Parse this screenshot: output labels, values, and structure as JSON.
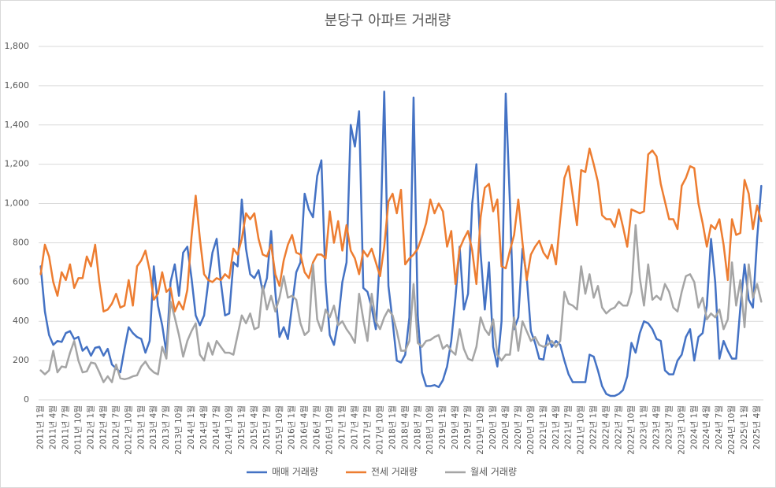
{
  "chart_data": {
    "type": "line",
    "title": "분당구 아파트 거래량",
    "categories": [
      "2011년 1월",
      null,
      null,
      "2011년 4월",
      null,
      null,
      "2011년 7월",
      null,
      null,
      "2011년 10월",
      null,
      null,
      "2012년 1월",
      null,
      null,
      "2012년 4월",
      null,
      null,
      "2012년 7월",
      null,
      null,
      "2012년 10월",
      null,
      null,
      "2013년 1월",
      null,
      null,
      "2013년 4월",
      null,
      null,
      "2013년 7월",
      null,
      null,
      "2013년 10월",
      null,
      null,
      "2014년 1월",
      null,
      null,
      "2014년 4월",
      null,
      null,
      "2014년 7월",
      null,
      null,
      "2014년 10월",
      null,
      null,
      "2015년 1월",
      null,
      null,
      "2015년 4월",
      null,
      null,
      "2015년 7월",
      null,
      null,
      "2015년 10월",
      null,
      null,
      "2016년 1월",
      null,
      null,
      "2016년 4월",
      null,
      null,
      "2016년 7월",
      null,
      null,
      "2016년 10월",
      null,
      null,
      "2017년 1월",
      null,
      null,
      "2017년 4월",
      null,
      null,
      "2017년 7월",
      null,
      null,
      "2017년 10월",
      null,
      null,
      "2018년 1월",
      null,
      null,
      "2018년 4월",
      null,
      null,
      "2018년 7월",
      null,
      null,
      "2018년 10월",
      null,
      null,
      "2019년 1월",
      null,
      null,
      "2019년 4월",
      null,
      null,
      "2019년 7월",
      null,
      null,
      "2019년 10월",
      null,
      null,
      "2020년 1월",
      null,
      null,
      "2020년 4월",
      null,
      null,
      "2020년 7월",
      null,
      null,
      "2020년 10월",
      null,
      null,
      "2021년 1월",
      null,
      null,
      "2021년 4월",
      null,
      null,
      "2021년 7월",
      null,
      null,
      "2021년 10월",
      null,
      null,
      "2022년 1월",
      null,
      null,
      "2022년 4월",
      null,
      null,
      "2022년 7월",
      null,
      null,
      "2022년 10월",
      null,
      null,
      "2023년 1월",
      null,
      null,
      "2023년 4월",
      null,
      null,
      "2023년 7월",
      null,
      null,
      "2023년 10월",
      null,
      null,
      "2024년 1월",
      null,
      null,
      "2024년 4월",
      null,
      null,
      "2024년 7월",
      null,
      null,
      "2024년 10월",
      null,
      null,
      "2025년 1월",
      null,
      null,
      "2025년 4월",
      null
    ],
    "series": [
      {
        "name": "매매 거래량",
        "color": "#4472c4",
        "values": [
          680,
          450,
          330,
          280,
          300,
          295,
          340,
          350,
          310,
          320,
          250,
          270,
          225,
          265,
          270,
          225,
          260,
          180,
          160,
          140,
          260,
          370,
          340,
          320,
          310,
          240,
          300,
          680,
          480,
          380,
          240,
          600,
          690,
          530,
          750,
          780,
          620,
          430,
          380,
          430,
          600,
          750,
          820,
          600,
          430,
          440,
          700,
          680,
          1020,
          770,
          640,
          620,
          660,
          550,
          620,
          860,
          550,
          320,
          370,
          310,
          480,
          650,
          700,
          1050,
          970,
          930,
          1140,
          1220,
          600,
          330,
          280,
          400,
          600,
          700,
          1400,
          1290,
          1470,
          570,
          550,
          470,
          360,
          750,
          1570,
          580,
          400,
          200,
          190,
          230,
          420,
          1540,
          430,
          140,
          70,
          70,
          75,
          65,
          100,
          170,
          300,
          520,
          780,
          460,
          540,
          1000,
          1200,
          750,
          460,
          700,
          270,
          170,
          400,
          1560,
          1000,
          360,
          420,
          770,
          630,
          350,
          290,
          210,
          205,
          330,
          270,
          300,
          280,
          200,
          130,
          90,
          90,
          90,
          90,
          230,
          220,
          150,
          70,
          30,
          20,
          20,
          30,
          50,
          120,
          290,
          240,
          340,
          400,
          390,
          360,
          310,
          300,
          150,
          130,
          130,
          200,
          230,
          320,
          360,
          200,
          320,
          340,
          480,
          820,
          600,
          210,
          300,
          250,
          210,
          210,
          470,
          690,
          510,
          470,
          820,
          1090
        ]
      },
      {
        "name": "전세 거래량",
        "color": "#ed7d31",
        "values": [
          640,
          790,
          730,
          600,
          530,
          650,
          610,
          690,
          570,
          620,
          620,
          730,
          680,
          790,
          600,
          450,
          460,
          490,
          540,
          470,
          480,
          610,
          480,
          680,
          710,
          760,
          660,
          510,
          540,
          650,
          550,
          570,
          450,
          500,
          460,
          560,
          830,
          1040,
          820,
          640,
          610,
          600,
          620,
          610,
          640,
          620,
          770,
          740,
          820,
          950,
          920,
          950,
          820,
          740,
          730,
          790,
          640,
          580,
          710,
          790,
          840,
          750,
          740,
          650,
          620,
          700,
          740,
          740,
          720,
          960,
          800,
          910,
          760,
          890,
          760,
          720,
          640,
          760,
          730,
          770,
          700,
          630,
          780,
          1010,
          1050,
          950,
          1070,
          690,
          720,
          740,
          770,
          830,
          900,
          1020,
          950,
          1000,
          960,
          780,
          860,
          590,
          770,
          820,
          860,
          760,
          590,
          930,
          1080,
          1100,
          960,
          1020,
          680,
          670,
          760,
          840,
          1020,
          800,
          610,
          740,
          780,
          810,
          750,
          720,
          790,
          690,
          920,
          1130,
          1190,
          1040,
          890,
          1170,
          1160,
          1280,
          1200,
          1110,
          940,
          920,
          920,
          880,
          970,
          880,
          780,
          970,
          960,
          950,
          960,
          1250,
          1270,
          1240,
          1100,
          1010,
          920,
          920,
          870,
          1090,
          1130,
          1190,
          1180,
          1000,
          900,
          780,
          890,
          870,
          920,
          790,
          610,
          920,
          840,
          850,
          1120,
          1050,
          870,
          990,
          910
        ]
      },
      {
        "name": "월세 거래량",
        "color": "#a5a5a5",
        "values": [
          150,
          130,
          150,
          250,
          140,
          170,
          165,
          240,
          300,
          200,
          140,
          145,
          190,
          185,
          140,
          90,
          120,
          90,
          180,
          110,
          105,
          110,
          120,
          125,
          170,
          195,
          160,
          140,
          130,
          270,
          210,
          500,
          420,
          330,
          220,
          300,
          350,
          390,
          230,
          200,
          290,
          230,
          300,
          270,
          240,
          240,
          230,
          330,
          430,
          390,
          440,
          360,
          370,
          580,
          460,
          530,
          450,
          520,
          630,
          520,
          530,
          510,
          390,
          330,
          350,
          690,
          410,
          350,
          460,
          420,
          480,
          380,
          400,
          360,
          330,
          290,
          540,
          410,
          300,
          540,
          400,
          360,
          420,
          460,
          430,
          350,
          250,
          250,
          300,
          590,
          290,
          270,
          300,
          305,
          320,
          330,
          260,
          280,
          250,
          230,
          360,
          260,
          210,
          200,
          270,
          420,
          360,
          330,
          410,
          230,
          200,
          230,
          230,
          420,
          250,
          400,
          350,
          300,
          320,
          280,
          270,
          280,
          300,
          270,
          300,
          550,
          490,
          480,
          460,
          680,
          540,
          640,
          520,
          580,
          470,
          440,
          460,
          470,
          500,
          480,
          480,
          550,
          890,
          620,
          480,
          690,
          510,
          530,
          510,
          590,
          550,
          470,
          450,
          550,
          630,
          640,
          600,
          470,
          520,
          410,
          440,
          420,
          460,
          360,
          410,
          700,
          480,
          610,
          370,
          690,
          520,
          590,
          500
        ]
      }
    ],
    "ylim": [
      0,
      1800
    ],
    "yticks": [
      0,
      200,
      400,
      600,
      800,
      {
        "value": 1000,
        "label": "1,000"
      },
      {
        "value": 1200,
        "label": "1,200"
      },
      {
        "value": 1400,
        "label": "1,400"
      },
      {
        "value": 1600,
        "label": "1,600"
      },
      {
        "value": 1800,
        "label": "1,800"
      }
    ],
    "grid": true,
    "legend": "bottom"
  }
}
